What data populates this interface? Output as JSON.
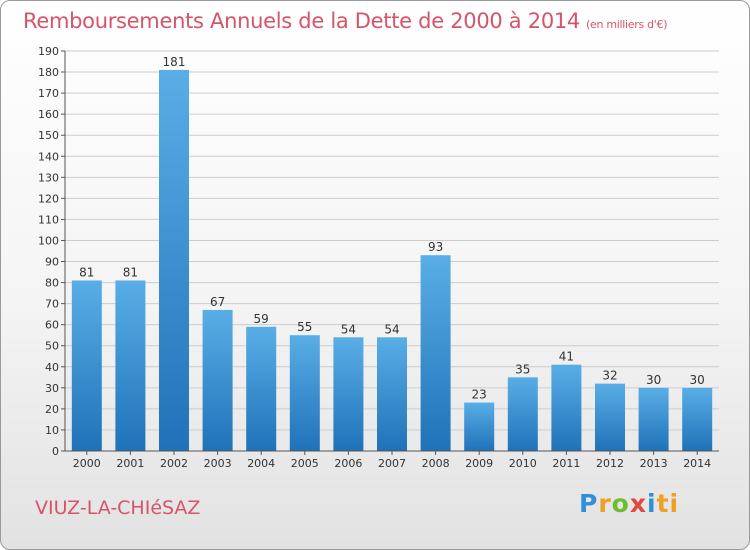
{
  "title": "Remboursements Annuels de la Dette de 2000 à 2014",
  "unit": "(en milliers d'€)",
  "city": "VIUZ-LA-CHIéSAZ",
  "logo": [
    "P",
    "r",
    "o",
    "x",
    "i",
    "ti"
  ],
  "colors": {
    "bar_top": "#5aaee6",
    "bar_bottom": "#1f72b8",
    "title": "#d6546a",
    "grid": "#cccccc"
  },
  "chart_data": {
    "type": "bar",
    "title": "Remboursements Annuels de la Dette de 2000 à 2014",
    "categories": [
      "2000",
      "2001",
      "2002",
      "2003",
      "2004",
      "2005",
      "2006",
      "2007",
      "2008",
      "2009",
      "2010",
      "2011",
      "2012",
      "2013",
      "2014"
    ],
    "values": [
      81,
      81,
      181,
      67,
      59,
      55,
      54,
      54,
      93,
      23,
      35,
      41,
      32,
      30,
      30
    ],
    "ylim": [
      0,
      190
    ],
    "yticks": [
      0,
      10,
      20,
      30,
      40,
      50,
      60,
      70,
      80,
      90,
      100,
      110,
      120,
      130,
      140,
      150,
      160,
      170,
      180,
      190
    ],
    "grid": true,
    "xlabel": "",
    "ylabel": ""
  }
}
